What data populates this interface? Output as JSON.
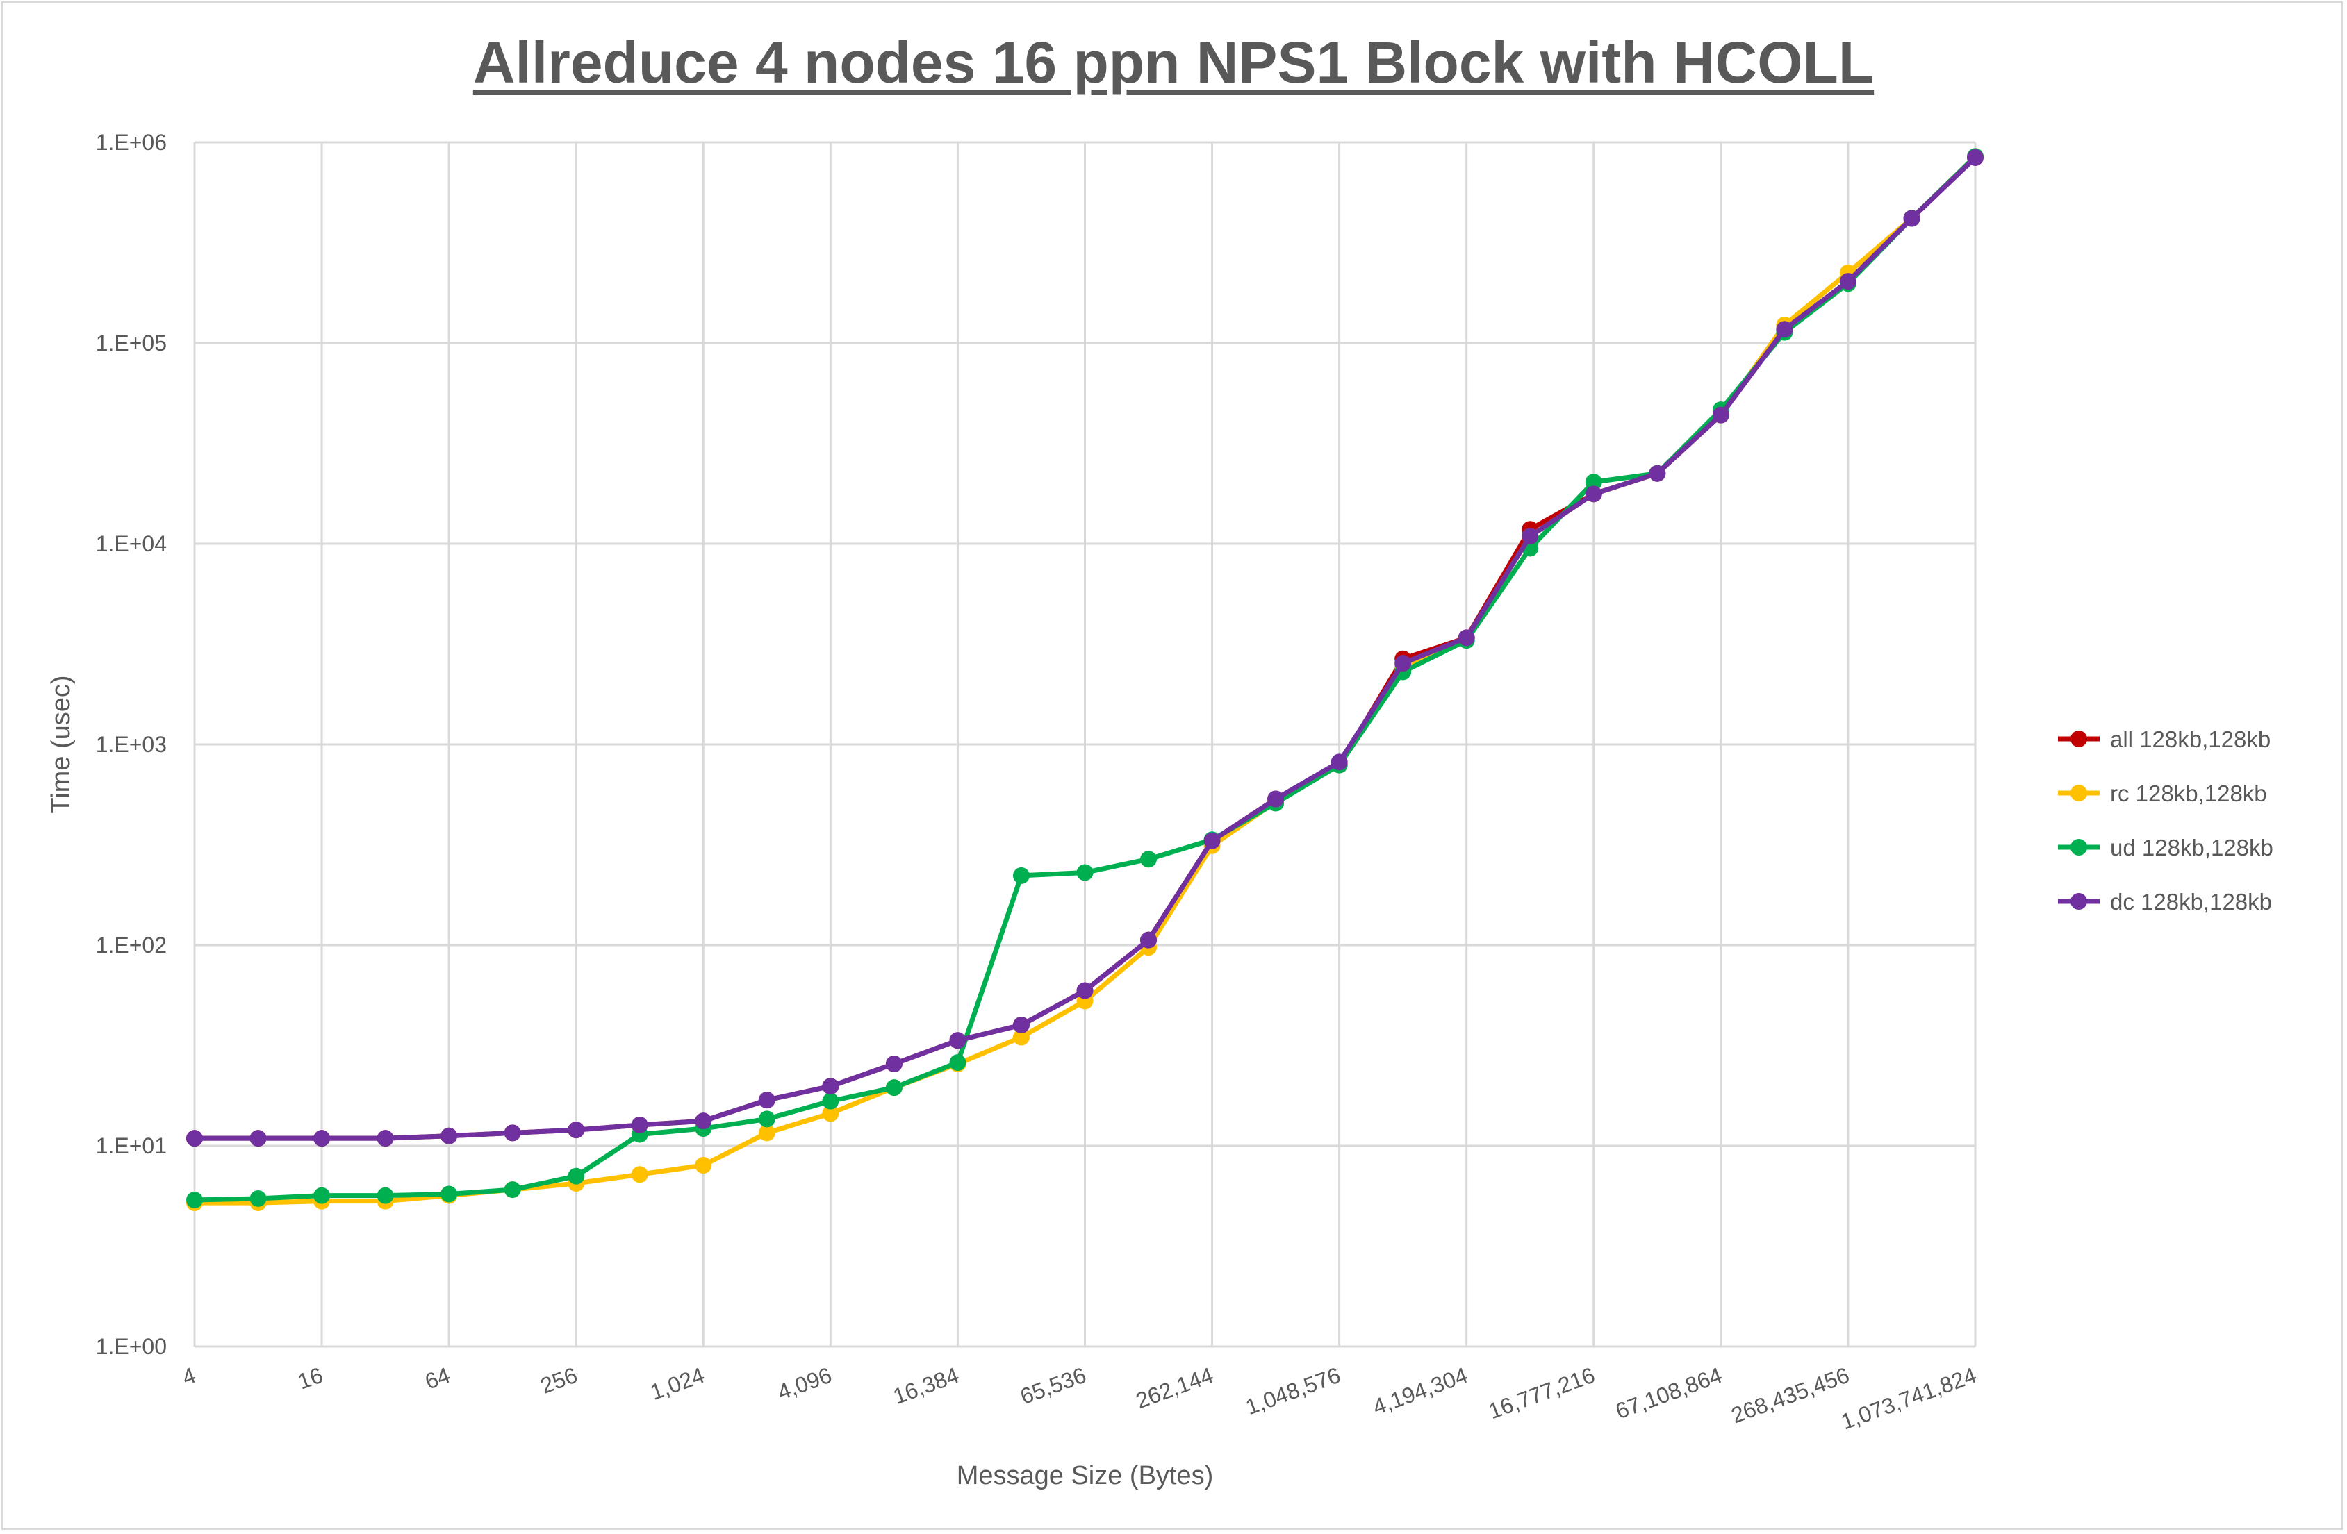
{
  "chart_data": {
    "type": "line",
    "title": "Allreduce 4 nodes 16 ppn NPS1 Block with HCOLL",
    "xlabel": "Message Size (Bytes)",
    "ylabel": "Time (usec)",
    "yscale": "log",
    "xscale": "log2",
    "ylim": [
      1,
      1000000
    ],
    "grid": true,
    "legend_position": "right",
    "y_tick_labels": [
      "1.E+00",
      "1.E+01",
      "1.E+02",
      "1.E+03",
      "1.E+04",
      "1.E+05",
      "1.E+06"
    ],
    "x_tick_labels": [
      "4",
      "16",
      "64",
      "256",
      "1,024",
      "4,096",
      "16,384",
      "65,536",
      "262,144",
      "1,048,576",
      "4,194,304",
      "16,777,216",
      "67,108,864",
      "268,435,456",
      "1,073,741,824"
    ],
    "x": [
      4,
      8,
      16,
      32,
      64,
      128,
      256,
      512,
      1024,
      2048,
      4096,
      8192,
      16384,
      32768,
      65536,
      131072,
      262144,
      524288,
      1048576,
      2097152,
      4194304,
      8388608,
      16777216,
      33554432,
      67108864,
      134217728,
      268435456,
      536870912,
      1073741824
    ],
    "series": [
      {
        "name": "all 128kb,128kb",
        "color": "#c00000",
        "values": [
          10.9,
          10.9,
          10.9,
          10.9,
          11.2,
          11.6,
          12.0,
          12.7,
          13.3,
          16.9,
          19.8,
          25.6,
          33.5,
          40,
          59.3,
          106,
          331,
          535,
          790,
          2670,
          3400,
          11800,
          17700,
          22400,
          43800,
          117000,
          203000,
          418000,
          840000
        ]
      },
      {
        "name": "rc 128kb,128kb",
        "color": "#ffc000",
        "values": [
          5.2,
          5.2,
          5.3,
          5.3,
          5.65,
          6.05,
          6.5,
          7.2,
          8.0,
          11.6,
          14.5,
          19.5,
          25.6,
          34.8,
          52.7,
          97.5,
          313,
          518,
          800,
          2450,
          3380,
          10900,
          17700,
          22400,
          43800,
          123000,
          224000,
          418000,
          850000
        ]
      },
      {
        "name": "ud 128kb,128kb",
        "color": "#00b050",
        "values": [
          5.37,
          5.46,
          5.65,
          5.65,
          5.75,
          6.05,
          7.06,
          11.4,
          12.2,
          13.6,
          16.7,
          19.5,
          26,
          222,
          230,
          268,
          335,
          510,
          790,
          2300,
          3300,
          9500,
          20300,
          22400,
          46500,
          113000,
          198000,
          418000,
          850000
        ]
      },
      {
        "name": "dc 128kb,128kb",
        "color": "#7030a0",
        "values": [
          10.9,
          10.9,
          10.9,
          10.9,
          11.2,
          11.6,
          12.0,
          12.7,
          13.3,
          16.9,
          19.8,
          25.6,
          33.5,
          40,
          59.3,
          106,
          331,
          535,
          817,
          2540,
          3400,
          10900,
          17700,
          22400,
          43800,
          117000,
          203000,
          418000,
          840000
        ]
      }
    ]
  }
}
